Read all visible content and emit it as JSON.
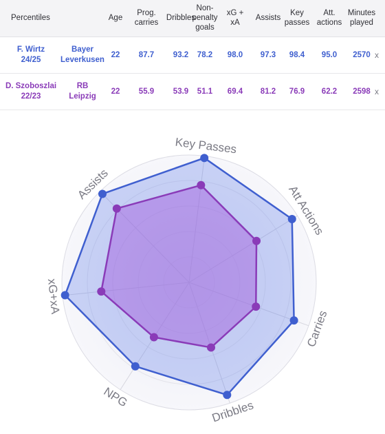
{
  "table": {
    "headers": {
      "percentiles": "Percentiles",
      "age": "Age",
      "prog_carries": [
        "Prog.",
        "carries"
      ],
      "dribbles": "Dribbles",
      "npg": [
        "Non-",
        "penalty",
        "goals"
      ],
      "xg_xa": [
        "xG +",
        "xA"
      ],
      "assists": "Assists",
      "key_passes": [
        "Key",
        "passes"
      ],
      "att_actions": [
        "Att.",
        "actions"
      ],
      "minutes_played": [
        "Minutes",
        "played"
      ]
    },
    "rows": [
      {
        "player": [
          "F. Wirtz",
          "24/25"
        ],
        "team": [
          "Bayer",
          "Leverkusen"
        ],
        "age": "22",
        "prog_carries": "87.7",
        "dribbles": "93.2",
        "npg": "78.2",
        "xg_xa": "98.0",
        "assists": "97.3",
        "key_passes": "98.4",
        "att_actions": "95.0",
        "minutes": "2570",
        "remove": "x",
        "color": "#3f5fcf"
      },
      {
        "player": [
          "D. Szoboszlai",
          "22/23"
        ],
        "team": [
          "RB",
          "Leipzig"
        ],
        "age": "22",
        "prog_carries": "55.9",
        "dribbles": "53.9",
        "npg": "51.1",
        "xg_xa": "69.4",
        "assists": "81.2",
        "key_passes": "76.9",
        "att_actions": "62.2",
        "minutes": "2598",
        "remove": "x",
        "color": "#8a3bb8"
      }
    ]
  },
  "chart_data": {
    "type": "radar",
    "axes": [
      "Key Passes",
      "Att Actions",
      "Carries",
      "Dribbles",
      "NPG",
      "xG+xA",
      "Assists"
    ],
    "range": [
      0,
      100
    ],
    "series": [
      {
        "name": "F. Wirtz 24/25",
        "values": [
          98.4,
          95.0,
          87.7,
          93.2,
          78.2,
          98.0,
          97.3
        ],
        "color": "#3f5fcf"
      },
      {
        "name": "D. Szoboszlai 22/23",
        "values": [
          76.9,
          62.2,
          55.9,
          53.9,
          51.1,
          69.4,
          81.2
        ],
        "color": "#8a3bb8"
      }
    ]
  }
}
